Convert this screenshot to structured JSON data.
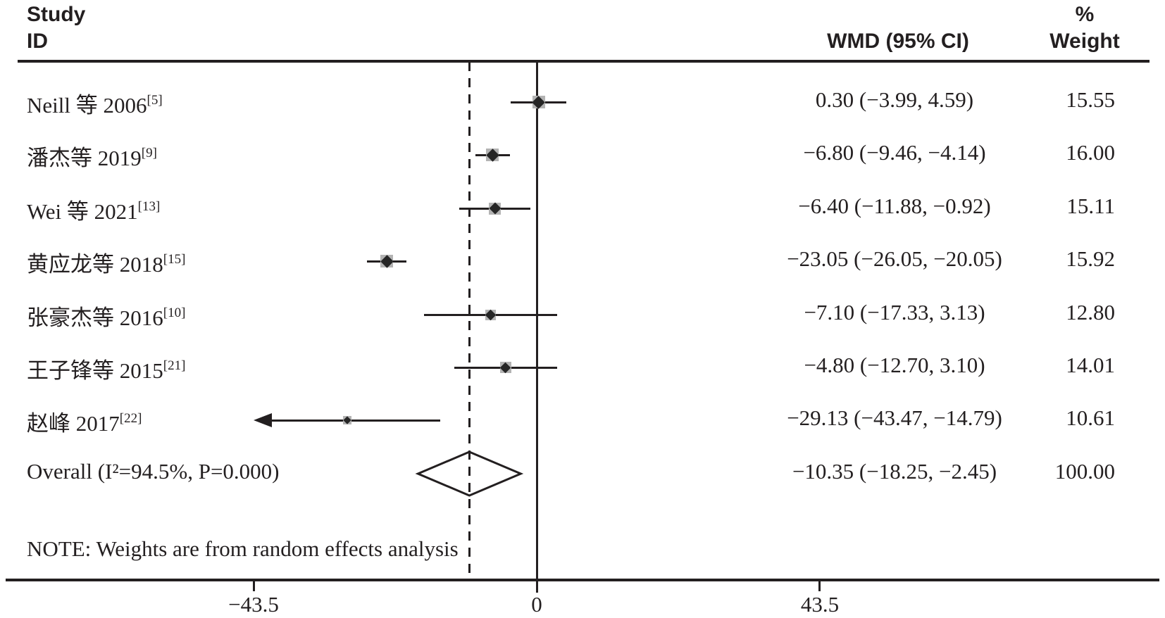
{
  "figure": {
    "columns": {
      "study_header_line1": "Study",
      "study_header_line2": "ID",
      "wmd_header": "WMD (95% CI)",
      "weight_header_line1": "%",
      "weight_header_line2": "Weight"
    },
    "note": "NOTE: Weights are from random effects analysis",
    "colors": {
      "ink": "#231f20",
      "square": "#b3b3b3",
      "marker": "#262626",
      "background": "#ffffff"
    }
  },
  "chart_data": {
    "type": "forest",
    "title": "",
    "xlabel": "",
    "xlim": [
      -43.5,
      43.5
    ],
    "xticks": [
      -43.5,
      0,
      43.5
    ],
    "xtick_labels": [
      "−43.5",
      "0",
      "43.5"
    ],
    "zero_line": 0,
    "overall_line": -10.35,
    "grid": false,
    "studies": [
      {
        "label": "Neill 等 2006",
        "ref": "[5]",
        "wmd": 0.3,
        "ci_low": -3.99,
        "ci_high": 4.59,
        "clip_low": false,
        "wmd_text": "0.30 (−3.99, 4.59)",
        "weight": 15.55,
        "weight_text": "15.55"
      },
      {
        "label": "潘杰等 2019",
        "ref": "[9]",
        "wmd": -6.8,
        "ci_low": -9.46,
        "ci_high": -4.14,
        "clip_low": false,
        "wmd_text": "−6.80 (−9.46, −4.14)",
        "weight": 16.0,
        "weight_text": "16.00"
      },
      {
        "label": "Wei 等 2021",
        "ref": "[13]",
        "wmd": -6.4,
        "ci_low": -11.88,
        "ci_high": -0.92,
        "clip_low": false,
        "wmd_text": "−6.40 (−11.88, −0.92)",
        "weight": 15.11,
        "weight_text": "15.11"
      },
      {
        "label": "黄应龙等 2018",
        "ref": "[15]",
        "wmd": -23.05,
        "ci_low": -26.05,
        "ci_high": -20.05,
        "clip_low": false,
        "wmd_text": "−23.05 (−26.05, −20.05)",
        "weight": 15.92,
        "weight_text": "15.92"
      },
      {
        "label": "张豪杰等 2016",
        "ref": "[10]",
        "wmd": -7.1,
        "ci_low": -17.33,
        "ci_high": 3.13,
        "clip_low": false,
        "wmd_text": "−7.10 (−17.33, 3.13)",
        "weight": 12.8,
        "weight_text": "12.80"
      },
      {
        "label": "王子锋等 2015",
        "ref": "[21]",
        "wmd": -4.8,
        "ci_low": -12.7,
        "ci_high": 3.1,
        "clip_low": false,
        "wmd_text": "−4.80 (−12.70, 3.10)",
        "weight": 14.01,
        "weight_text": "14.01"
      },
      {
        "label": "赵峰 2017",
        "ref": "[22]",
        "wmd": -29.13,
        "ci_low": -43.47,
        "ci_high": -14.79,
        "clip_low": true,
        "wmd_text": "−29.13 (−43.47, −14.79)",
        "weight": 10.61,
        "weight_text": "10.61"
      }
    ],
    "overall": {
      "label": "Overall  (I²=94.5%, P=0.000)",
      "wmd": -10.35,
      "ci_low": -18.25,
      "ci_high": -2.45,
      "wmd_text": "−10.35 (−18.25, −2.45)",
      "weight_text": "100.00"
    }
  }
}
